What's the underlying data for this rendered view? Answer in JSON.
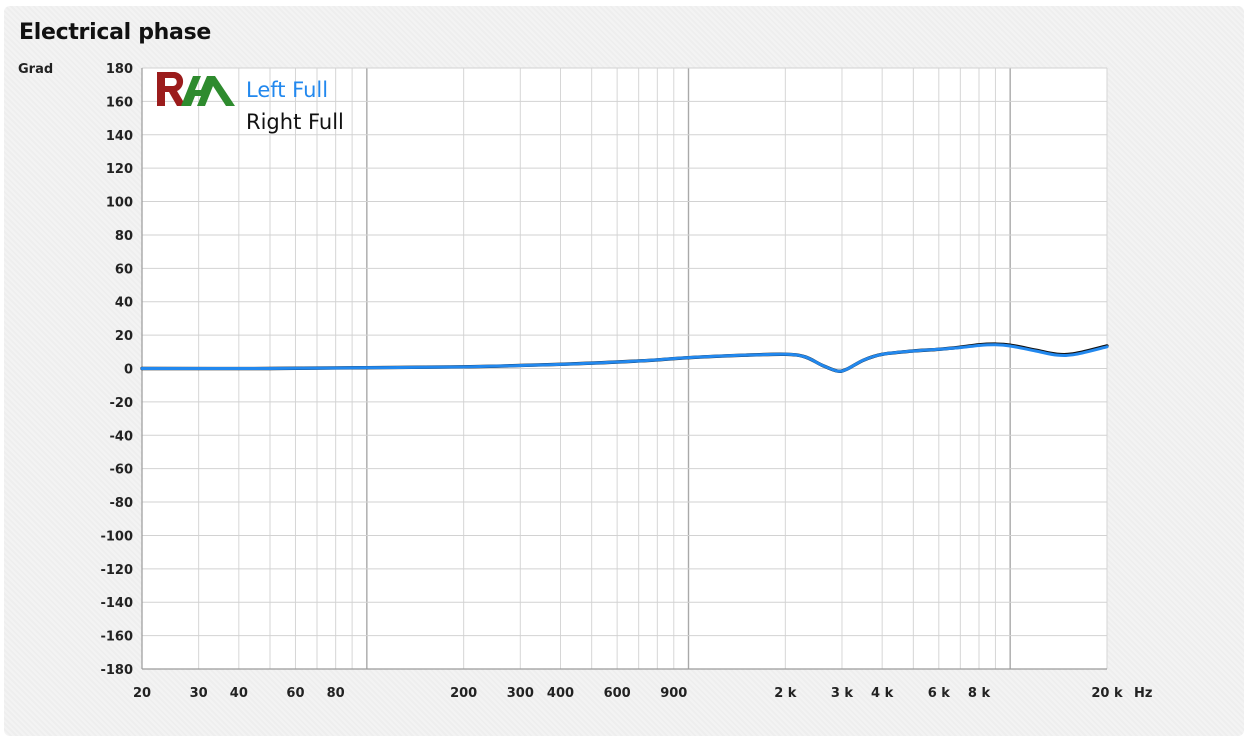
{
  "chart_data": {
    "type": "line",
    "title": "Electrical phase",
    "ylabel": "Grad",
    "xunit": "Hz",
    "xscale": "log",
    "xlim": [
      20,
      20000
    ],
    "ylim": [
      -180,
      180
    ],
    "yticks": [
      180,
      160,
      140,
      120,
      100,
      80,
      60,
      40,
      20,
      0,
      -20,
      -40,
      -60,
      -80,
      -100,
      -120,
      -140,
      -160,
      -180
    ],
    "xticks": [
      {
        "value": 20,
        "label": "20"
      },
      {
        "value": 30,
        "label": "30"
      },
      {
        "value": 40,
        "label": "40"
      },
      {
        "value": 60,
        "label": "60"
      },
      {
        "value": 80,
        "label": "80"
      },
      {
        "value": 200,
        "label": "200"
      },
      {
        "value": 300,
        "label": "300"
      },
      {
        "value": 400,
        "label": "400"
      },
      {
        "value": 600,
        "label": "600"
      },
      {
        "value": 900,
        "label": "900"
      },
      {
        "value": 2000,
        "label": "2 k"
      },
      {
        "value": 3000,
        "label": "3 k"
      },
      {
        "value": 4000,
        "label": "4 k"
      },
      {
        "value": 6000,
        "label": "6 k"
      },
      {
        "value": 8000,
        "label": "8 k"
      },
      {
        "value": 20000,
        "label": "20 k"
      }
    ],
    "grid": true,
    "legend_position": "top-left",
    "series": [
      {
        "name": "Left Full",
        "color": "#2288ee",
        "x": [
          20,
          50,
          100,
          200,
          400,
          700,
          1000,
          1500,
          2000,
          2300,
          2600,
          2900,
          3100,
          3500,
          4000,
          5000,
          6000,
          7000,
          8000,
          9000,
          10000,
          12000,
          14000,
          16000,
          20000
        ],
        "y": [
          0,
          0,
          0.5,
          1,
          2.5,
          4.5,
          6.5,
          8,
          8.5,
          7,
          2,
          -1.5,
          -0.5,
          5,
          8.5,
          10.5,
          11.5,
          12.5,
          13.8,
          14.2,
          13.5,
          10.5,
          8,
          8.5,
          13
        ]
      },
      {
        "name": "Right Full",
        "color": "#111111",
        "x": [
          20,
          50,
          100,
          200,
          400,
          700,
          1000,
          1500,
          2000,
          2300,
          2600,
          2900,
          3100,
          3500,
          4000,
          5000,
          6000,
          7000,
          8000,
          9000,
          10000,
          12000,
          14000,
          16000,
          20000
        ],
        "y": [
          0,
          0,
          0.5,
          1,
          2.5,
          4.5,
          6.5,
          8,
          8.5,
          7,
          2,
          -1.5,
          -0.5,
          5,
          8.5,
          10.5,
          11.5,
          12.8,
          14.2,
          14.6,
          14,
          11,
          8.5,
          9,
          13.5
        ]
      }
    ]
  },
  "logo": {
    "text": "RAA",
    "colors": [
      "#9b1c1c",
      "#2e8b2e"
    ]
  }
}
